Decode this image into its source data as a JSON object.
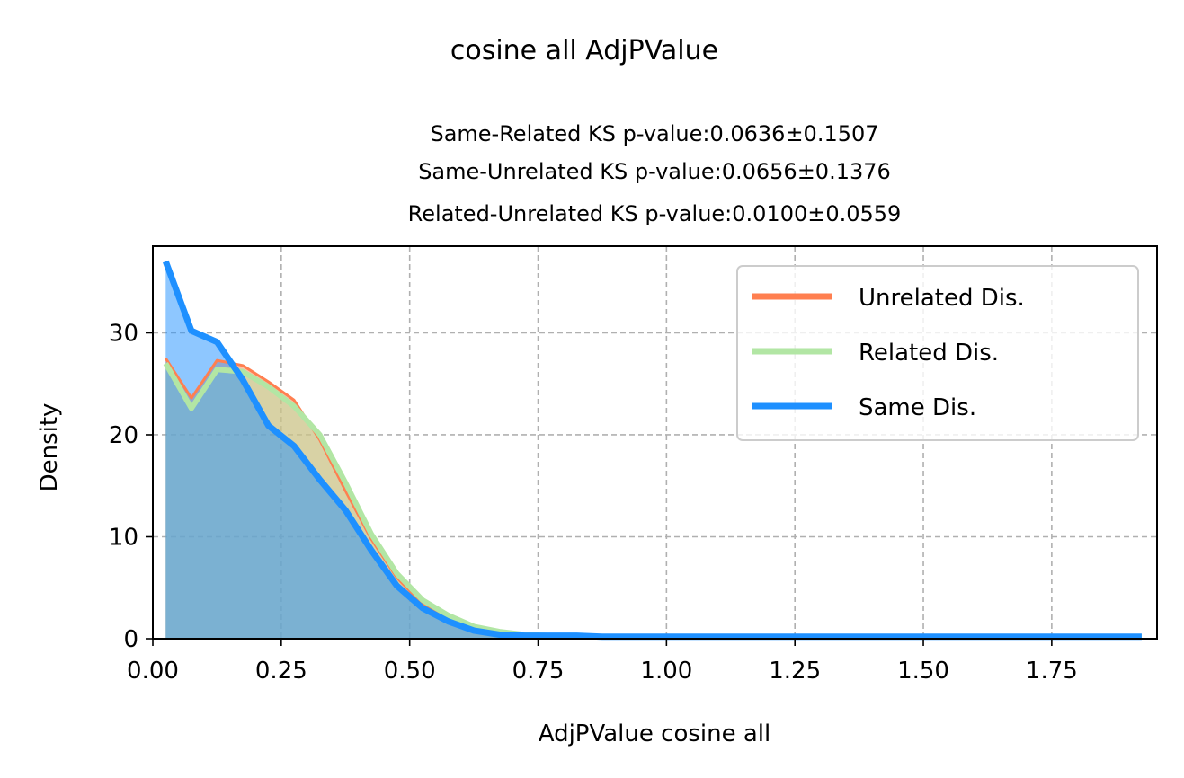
{
  "chart_data": {
    "type": "area",
    "suptitle": "cosine all AdjPValue",
    "title_lines": [
      "Same-Related KS p-value:0.0636±0.1507",
      "Same-Unrelated KS p-value:0.0656±0.1376",
      "Related-Unrelated KS p-value:0.0100±0.0559"
    ],
    "xlabel": "AdjPValue cosine all",
    "ylabel": "Density",
    "xlim": [
      0,
      1.955
    ],
    "ylim": [
      0,
      38.5
    ],
    "xticks": [
      0,
      0.25,
      0.5,
      0.75,
      1.0,
      1.25,
      1.5,
      1.75
    ],
    "xtick_labels": [
      "0.00",
      "0.25",
      "0.50",
      "0.75",
      "1.00",
      "1.25",
      "1.50",
      "1.75"
    ],
    "yticks": [
      0,
      10,
      20,
      30
    ],
    "ytick_labels": [
      "0",
      "10",
      "20",
      "30"
    ],
    "grid": true,
    "legend_position": "upper right",
    "series": [
      {
        "name": "Unrelated Dis.",
        "color": "#FF7F50",
        "x": [
          0.025,
          0.075,
          0.125,
          0.175,
          0.225,
          0.275,
          0.325,
          0.375,
          0.425,
          0.475,
          0.525,
          0.575,
          0.625,
          0.675,
          0.725,
          0.775,
          0.825,
          0.875,
          0.925,
          0.975,
          1.025,
          1.075,
          1.125,
          1.175,
          1.225,
          1.275,
          1.325,
          1.375,
          1.425,
          1.475,
          1.525,
          1.575,
          1.625,
          1.675,
          1.725,
          1.775,
          1.825,
          1.875,
          1.925
        ],
        "y": [
          27.5,
          23.6,
          27.3,
          26.8,
          25.2,
          23.4,
          19.5,
          14.5,
          9.8,
          6.0,
          3.4,
          2.0,
          1.0,
          0.6,
          0.4,
          0.3,
          0.3,
          0.2,
          0.2,
          0.2,
          0.2,
          0.2,
          0.2,
          0.2,
          0.2,
          0.2,
          0.2,
          0.2,
          0.2,
          0.2,
          0.2,
          0.2,
          0.2,
          0.2,
          0.2,
          0.2,
          0.2,
          0.2,
          0.2
        ]
      },
      {
        "name": "Related Dis.",
        "color": "#B2E6A4",
        "x": [
          0.025,
          0.075,
          0.125,
          0.175,
          0.225,
          0.275,
          0.325,
          0.375,
          0.425,
          0.475,
          0.525,
          0.575,
          0.625,
          0.675,
          0.725,
          0.775,
          0.825,
          0.875,
          0.925,
          0.975,
          1.025,
          1.075,
          1.125,
          1.175,
          1.225,
          1.275,
          1.325,
          1.375,
          1.425,
          1.475,
          1.525,
          1.575,
          1.625,
          1.675,
          1.725,
          1.775,
          1.825,
          1.875,
          1.925
        ],
        "y": [
          27.0,
          22.6,
          26.4,
          26.2,
          24.7,
          22.8,
          20.0,
          15.3,
          10.3,
          6.4,
          3.8,
          2.3,
          1.2,
          0.7,
          0.4,
          0.3,
          0.3,
          0.2,
          0.2,
          0.2,
          0.2,
          0.2,
          0.2,
          0.2,
          0.2,
          0.2,
          0.2,
          0.2,
          0.2,
          0.2,
          0.2,
          0.2,
          0.2,
          0.2,
          0.2,
          0.2,
          0.2,
          0.2,
          0.2
        ]
      },
      {
        "name": "Same Dis.",
        "color": "#1E90FF",
        "x": [
          0.025,
          0.075,
          0.125,
          0.175,
          0.225,
          0.275,
          0.325,
          0.375,
          0.425,
          0.475,
          0.525,
          0.575,
          0.625,
          0.675,
          0.725,
          0.775,
          0.825,
          0.875,
          0.925,
          0.975,
          1.025,
          1.075,
          1.125,
          1.175,
          1.225,
          1.275,
          1.325,
          1.375,
          1.425,
          1.475,
          1.525,
          1.575,
          1.625,
          1.675,
          1.725,
          1.775,
          1.825,
          1.875,
          1.925
        ],
        "y": [
          37.0,
          30.2,
          29.1,
          25.4,
          20.9,
          18.9,
          15.6,
          12.6,
          8.7,
          5.2,
          3.0,
          1.7,
          0.8,
          0.4,
          0.3,
          0.3,
          0.3,
          0.2,
          0.2,
          0.2,
          0.2,
          0.2,
          0.2,
          0.2,
          0.2,
          0.2,
          0.2,
          0.2,
          0.2,
          0.2,
          0.2,
          0.2,
          0.2,
          0.2,
          0.2,
          0.2,
          0.2,
          0.2,
          0.2
        ]
      }
    ]
  }
}
